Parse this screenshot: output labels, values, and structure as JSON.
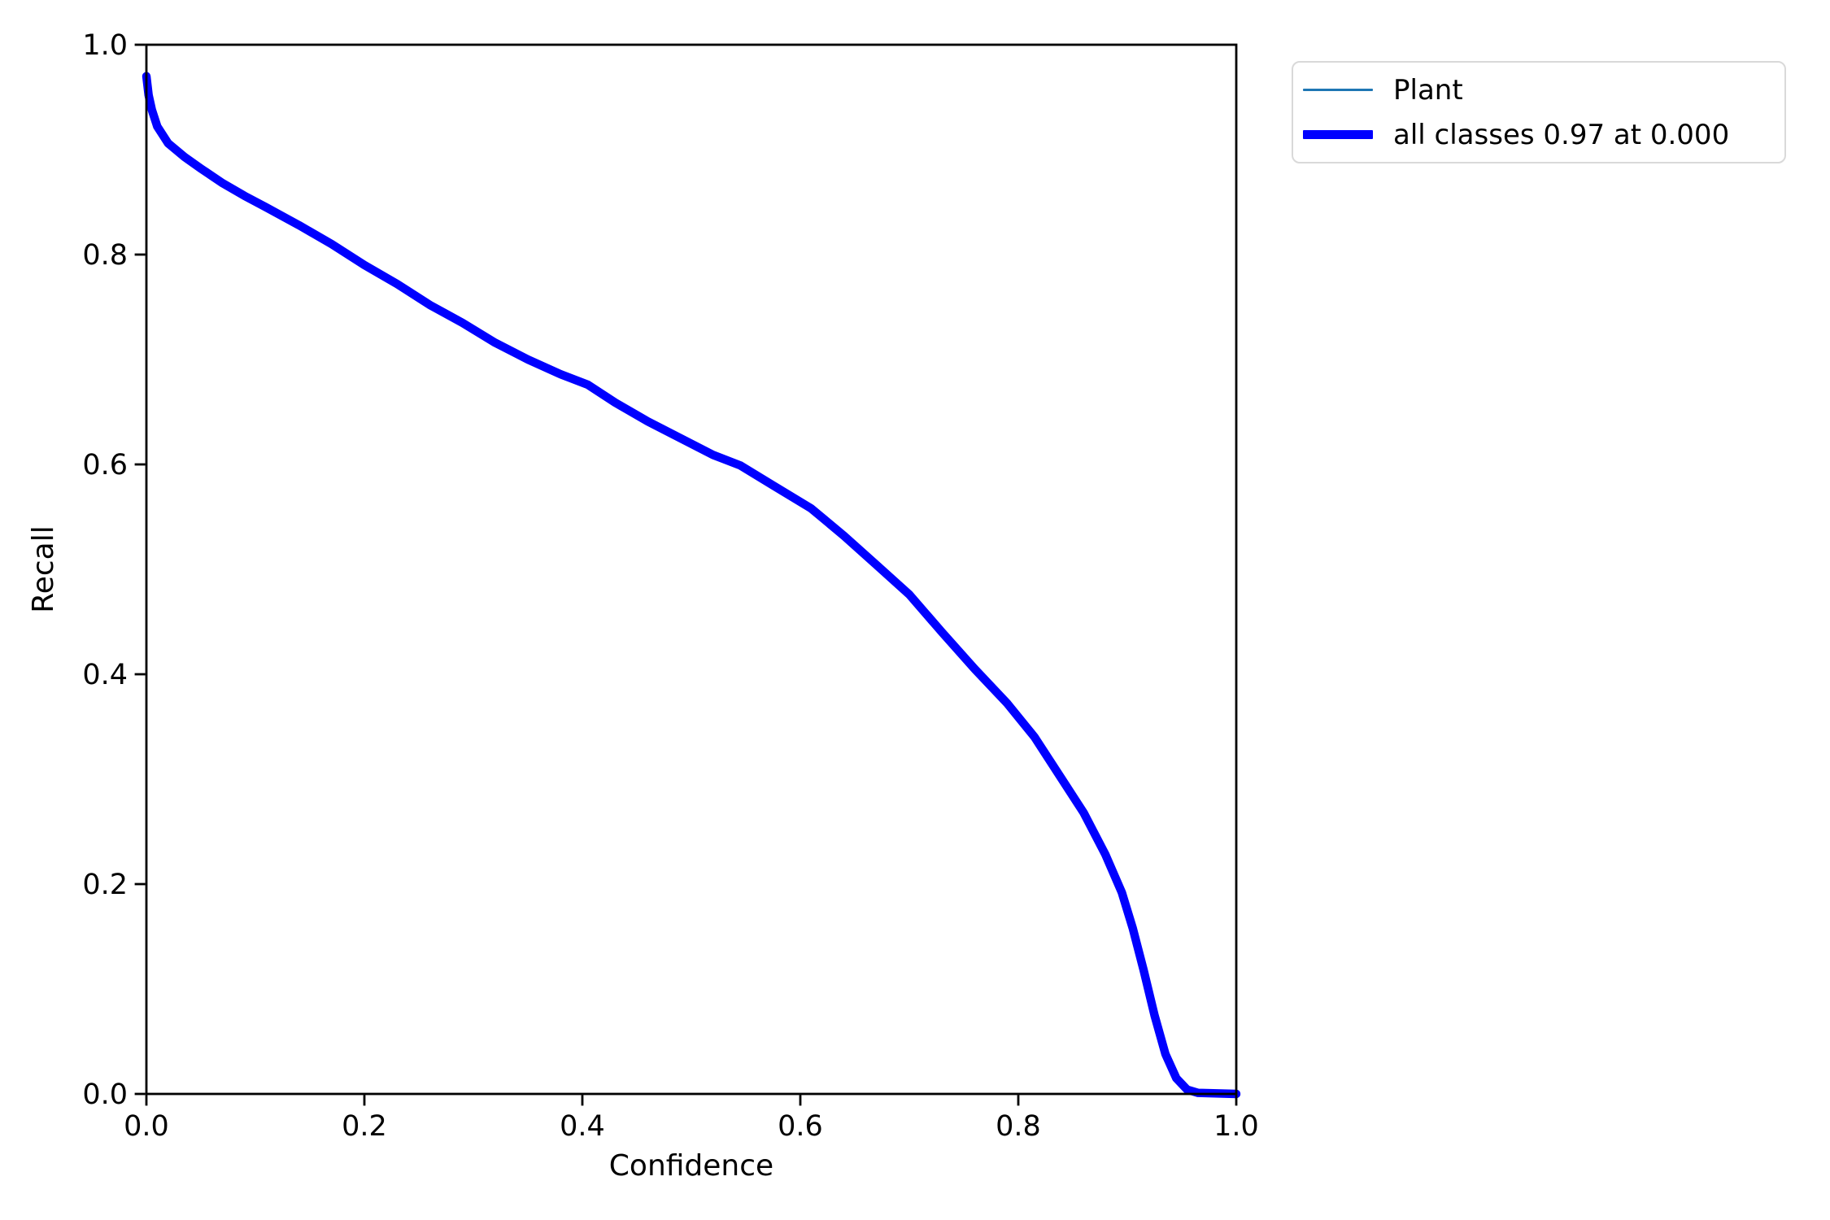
{
  "figure": {
    "background": "#ffffff",
    "plot_background": "#ffffff"
  },
  "chart_data": {
    "type": "line",
    "title": "",
    "xlabel": "Confidence",
    "ylabel": "Recall",
    "xlim": [
      0.0,
      1.0
    ],
    "ylim": [
      0.0,
      1.0
    ],
    "xticks": [
      0.0,
      0.2,
      0.4,
      0.6,
      0.8,
      1.0
    ],
    "yticks": [
      0.0,
      0.2,
      0.4,
      0.6,
      0.8,
      1.0
    ],
    "xtick_labels": [
      "0.0",
      "0.2",
      "0.4",
      "0.6",
      "0.8",
      "1.0"
    ],
    "ytick_labels": [
      "0.0",
      "0.2",
      "0.4",
      "0.6",
      "0.8",
      "1.0"
    ],
    "grid": false,
    "legend_position": "outside upper right",
    "series": [
      {
        "name": "Plant",
        "color": "#1f77b4",
        "linewidth": 1,
        "x": [
          0.0,
          0.002,
          0.005,
          0.01,
          0.02,
          0.035,
          0.05,
          0.07,
          0.09,
          0.11,
          0.14,
          0.17,
          0.2,
          0.23,
          0.26,
          0.29,
          0.32,
          0.35,
          0.38,
          0.405,
          0.43,
          0.46,
          0.49,
          0.52,
          0.545,
          0.575,
          0.61,
          0.64,
          0.67,
          0.7,
          0.73,
          0.76,
          0.79,
          0.815,
          0.84,
          0.86,
          0.88,
          0.895,
          0.905,
          0.915,
          0.925,
          0.935,
          0.945,
          0.955,
          0.965,
          1.0
        ],
        "y": [
          0.97,
          0.952,
          0.938,
          0.922,
          0.906,
          0.893,
          0.882,
          0.868,
          0.856,
          0.845,
          0.828,
          0.81,
          0.79,
          0.772,
          0.752,
          0.735,
          0.716,
          0.7,
          0.686,
          0.676,
          0.659,
          0.641,
          0.625,
          0.609,
          0.599,
          0.58,
          0.558,
          0.532,
          0.504,
          0.476,
          0.44,
          0.405,
          0.372,
          0.34,
          0.3,
          0.268,
          0.228,
          0.192,
          0.158,
          0.118,
          0.075,
          0.038,
          0.015,
          0.004,
          0.001,
          0.0
        ]
      },
      {
        "name": "all classes 0.97 at 0.000",
        "color": "#0000ff",
        "linewidth": 3,
        "x": [
          0.0,
          0.002,
          0.005,
          0.01,
          0.02,
          0.035,
          0.05,
          0.07,
          0.09,
          0.11,
          0.14,
          0.17,
          0.2,
          0.23,
          0.26,
          0.29,
          0.32,
          0.35,
          0.38,
          0.405,
          0.43,
          0.46,
          0.49,
          0.52,
          0.545,
          0.575,
          0.61,
          0.64,
          0.67,
          0.7,
          0.73,
          0.76,
          0.79,
          0.815,
          0.84,
          0.86,
          0.88,
          0.895,
          0.905,
          0.915,
          0.925,
          0.935,
          0.945,
          0.955,
          0.965,
          1.0
        ],
        "y": [
          0.97,
          0.952,
          0.938,
          0.922,
          0.906,
          0.893,
          0.882,
          0.868,
          0.856,
          0.845,
          0.828,
          0.81,
          0.79,
          0.772,
          0.752,
          0.735,
          0.716,
          0.7,
          0.686,
          0.676,
          0.659,
          0.641,
          0.625,
          0.609,
          0.599,
          0.58,
          0.558,
          0.532,
          0.504,
          0.476,
          0.44,
          0.405,
          0.372,
          0.34,
          0.3,
          0.268,
          0.228,
          0.192,
          0.158,
          0.118,
          0.075,
          0.038,
          0.015,
          0.004,
          0.001,
          0.0
        ]
      }
    ]
  }
}
